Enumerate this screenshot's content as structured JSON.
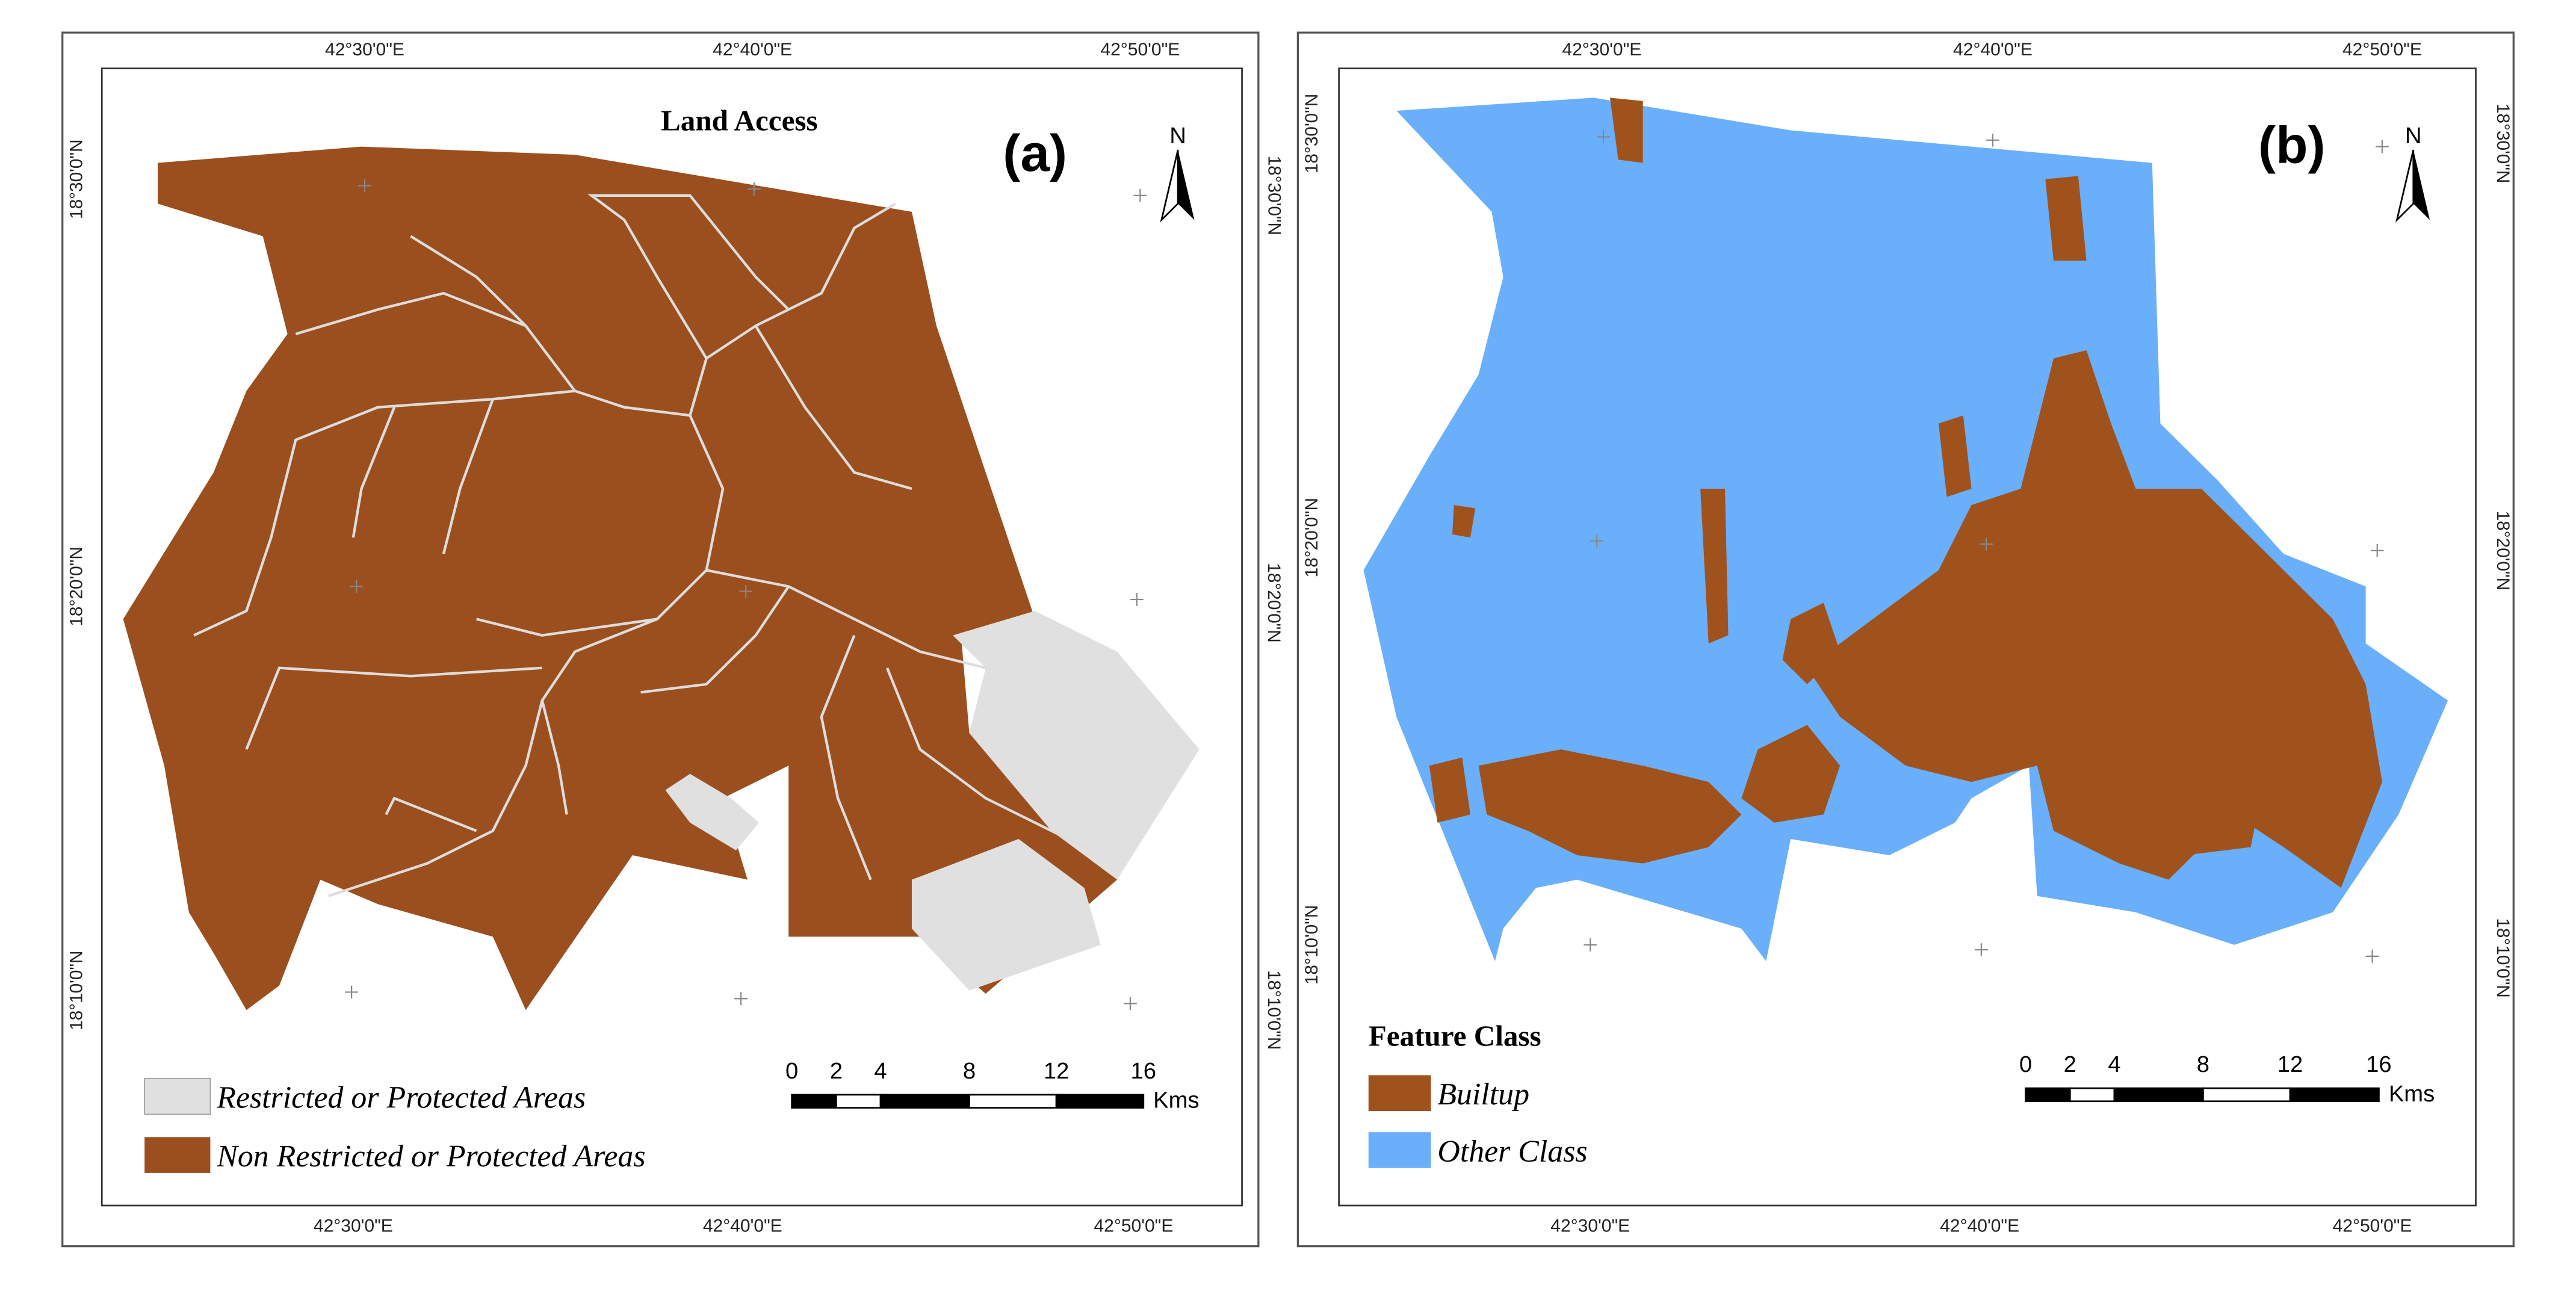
{
  "panels": [
    {
      "label": "(a)",
      "title": "Land Access",
      "north": "N",
      "top_labels": [
        "42°30'0\"E",
        "42°40'0\"E",
        "42°50'0\"E"
      ],
      "bottom_labels": [
        "42°30'0\"E",
        "42°40'0\"E",
        "42°50'0\"E"
      ],
      "left_labels": [
        "18°30'0\"N",
        "18°20'0\"N",
        "18°10'0\"N"
      ],
      "right_labels": [
        "18°30'0\"N",
        "18°20'0\"N",
        "18°10'0\"N"
      ],
      "legend": {
        "items": [
          "Restricted or Protected Areas",
          "Non Restricted or Protected Areas"
        ]
      },
      "scale": {
        "ticks": [
          0,
          2,
          4,
          8,
          12,
          16
        ],
        "unit": "Kms"
      }
    },
    {
      "label": "(b)",
      "north": "N",
      "top_labels": [
        "42°30'0\"E",
        "42°40'0\"E",
        "42°50'0\"E"
      ],
      "bottom_labels": [
        "42°30'0\"E",
        "42°40'0\"E",
        "42°50'0\"E"
      ],
      "left_labels": [
        "18°30'0\"N",
        "18°20'0\"N",
        "18°10'0\"N"
      ],
      "right_labels": [
        "18°30'0\"N",
        "18°20'0\"N",
        "18°10'0\"N"
      ],
      "legend": {
        "title": "Feature Class",
        "items": [
          "Builtup",
          "Other Class"
        ]
      },
      "scale": {
        "ticks": [
          0,
          2,
          4,
          8,
          12,
          16
        ],
        "unit": "Kms"
      }
    }
  ]
}
